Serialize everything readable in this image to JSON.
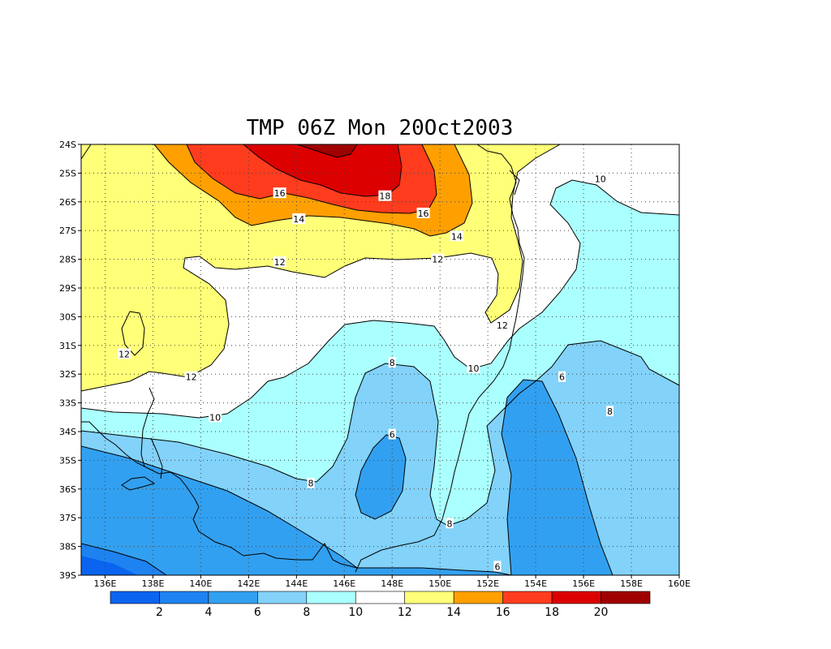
{
  "title": "TMP 06Z Mon 20Oct2003",
  "map": {
    "lon_range": [
      135,
      160
    ],
    "lat_range": [
      -39,
      -24
    ],
    "lon_ticks": [
      136,
      138,
      140,
      142,
      144,
      146,
      148,
      150,
      152,
      154,
      156,
      158,
      160
    ],
    "lon_tick_labels": [
      "136E",
      "138E",
      "140E",
      "142E",
      "144E",
      "146E",
      "148E",
      "150E",
      "152E",
      "154E",
      "156E",
      "158E",
      "160E"
    ],
    "lat_ticks": [
      -24,
      -25,
      -26,
      -27,
      -28,
      -29,
      -30,
      -31,
      -32,
      -33,
      -34,
      -35,
      -36,
      -37,
      -38,
      -39
    ],
    "lat_tick_labels": [
      "24S",
      "25S",
      "26S",
      "27S",
      "28S",
      "29S",
      "30S",
      "31S",
      "32S",
      "33S",
      "34S",
      "35S",
      "36S",
      "37S",
      "38S",
      "39S"
    ],
    "grid": true
  },
  "colorbar": {
    "colors": [
      "#0a64f0",
      "#1e82f0",
      "#32a0f0",
      "#82d2fa",
      "#aaffff",
      "#ffffff",
      "#ffff78",
      "#ffa000",
      "#ff3c1e",
      "#dc0000",
      "#a00000"
    ],
    "tick_labels": [
      "2",
      "4",
      "6",
      "8",
      "10",
      "12",
      "14",
      "16",
      "18",
      "20"
    ]
  },
  "contour_labels": [
    {
      "text": "18",
      "lon": 147.7,
      "lat": -25.8
    },
    {
      "text": "16",
      "lon": 143.3,
      "lat": -25.7
    },
    {
      "text": "16",
      "lon": 149.3,
      "lat": -26.4
    },
    {
      "text": "14",
      "lon": 144.1,
      "lat": -26.6
    },
    {
      "text": "14",
      "lon": 150.7,
      "lat": -27.2
    },
    {
      "text": "12",
      "lon": 143.3,
      "lat": -28.1
    },
    {
      "text": "12",
      "lon": 149.9,
      "lat": -28.0
    },
    {
      "text": "12",
      "lon": 152.6,
      "lat": -30.3
    },
    {
      "text": "12",
      "lon": 136.8,
      "lat": -31.3
    },
    {
      "text": "12",
      "lon": 139.6,
      "lat": -32.1
    },
    {
      "text": "10",
      "lon": 156.7,
      "lat": -25.2
    },
    {
      "text": "10",
      "lon": 151.4,
      "lat": -31.8
    },
    {
      "text": "10",
      "lon": 140.6,
      "lat": -33.5
    },
    {
      "text": "8",
      "lon": 148.0,
      "lat": -31.6
    },
    {
      "text": "8",
      "lon": 144.6,
      "lat": -35.8
    },
    {
      "text": "8",
      "lon": 150.4,
      "lat": -37.2
    },
    {
      "text": "8",
      "lon": 157.1,
      "lat": -33.3
    },
    {
      "text": "6",
      "lon": 148.0,
      "lat": -34.1
    },
    {
      "text": "6",
      "lon": 155.1,
      "lat": -32.1
    },
    {
      "text": "6",
      "lon": 152.4,
      "lat": -38.7
    }
  ]
}
